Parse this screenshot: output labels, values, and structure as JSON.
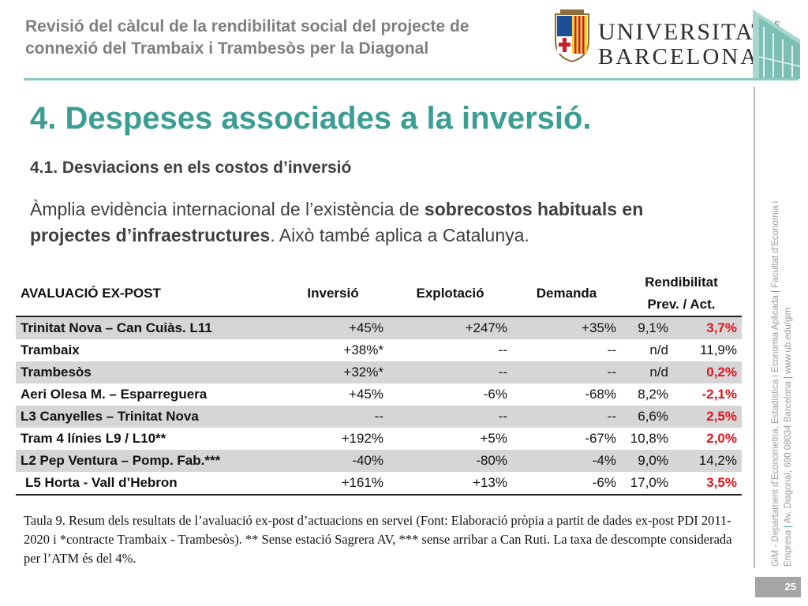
{
  "header": {
    "title": "Revisió del càlcul de la rendibilitat social del projecte de connexió del Trambaix i Trambesòs per la Diagonal",
    "logo_line1": "UNIVERSITAT",
    "logo_de": "DE",
    "logo_line2": "BARCELONA"
  },
  "main": {
    "title": "4. Despeses associades a la inversió.",
    "subtitle": "4.1. Desviacions en els costos d’inversió",
    "body_pre": "Àmplia evidència internacional de l’existència de ",
    "body_bold": "sobrecostos habituals en projectes d’infraestructures",
    "body_post": ". Això també aplica a Catalunya."
  },
  "table": {
    "headers": {
      "name": "AVALUACIÓ EX-POST",
      "inversio": "Inversió",
      "explotacio": "Explotació",
      "demanda": "Demanda",
      "rendibilitat": "Rendibilitat",
      "prev_act": "Prev. / Act."
    },
    "rows": [
      {
        "name": "Trinitat Nova – Can Cuiàs. L11",
        "inversio": "+45%",
        "explotacio": "+247%",
        "demanda": "+35%",
        "prev": "9,1%",
        "act": "3,7%"
      },
      {
        "name": "Trambaix",
        "inversio": "+38%*",
        "explotacio": "--",
        "demanda": "--",
        "prev": "n/d",
        "act": "11,9%"
      },
      {
        "name": "Trambesòs",
        "inversio": "+32%*",
        "explotacio": "--",
        "demanda": "--",
        "prev": "n/d",
        "act": "0,2%"
      },
      {
        "name": "Aeri Olesa M. – Esparreguera",
        "inversio": "+45%",
        "explotacio": "-6%",
        "demanda": "-68%",
        "prev": "8,2%",
        "act": "-2,1%"
      },
      {
        "name": "L3 Canyelles – Trinitat Nova",
        "inversio": "--",
        "explotacio": "--",
        "demanda": "--",
        "prev": "6,6%",
        "act": "2,5%"
      },
      {
        "name": "Tram 4 línies L9 / L10**",
        "inversio": "+192%",
        "explotacio": "+5%",
        "demanda": "-67%",
        "prev": "10,8%",
        "act": "2,0%"
      },
      {
        "name": "L2 Pep Ventura – Pomp. Fab.***",
        "inversio": "-40%",
        "explotacio": "-80%",
        "demanda": "-4%",
        "prev": "9,0%",
        "act": "14,2%"
      },
      {
        "name": "L5 Horta - Vall d’Hebron",
        "inversio": "+161%",
        "explotacio": "+13%",
        "demanda": "-6%",
        "prev": "17,0%",
        "act": "3,5%"
      }
    ],
    "caption": "Taula 9. Resum dels resultats de l’avaluació ex-post d’actuacions en servei (Font: Elaboració pròpia a partit de dades ex-post PDI 2011-2020 i *contracte Trambaix - Trambesòs). ** Sense estació Sagrera AV, *** sense arribar a Can Ruti. La taxa de descompte considerada per l’ATM és del 4%."
  },
  "sidebar": {
    "line1": "GiM - Departament d’Econometria, Estadística i Economia Aplicada",
    "sep1": " | ",
    "line1b": "Facultat d’Economia i",
    "line2": "Empresa",
    "sep2": " | ",
    "line2b": "Av. Diagonal, 690 08034 Barcelona",
    "sep3": " | ",
    "line2c": "www.ub.edu/gim"
  },
  "footer": {
    "page_number": "25"
  },
  "colors": {
    "accent": "#3c9d93",
    "rule": "#8cc9c1",
    "red": "#e0141e",
    "shade": "#d6d6d6"
  }
}
